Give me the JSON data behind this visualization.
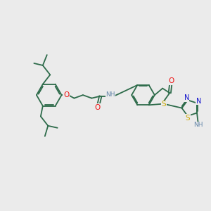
{
  "background_color": "#ebebeb",
  "bond_color": "#2d6b4a",
  "bond_width": 1.3,
  "figsize": [
    3.0,
    3.0
  ],
  "dpi": 100,
  "atoms": {
    "O_red": "#ee1111",
    "N_blue": "#1111cc",
    "S_yellow": "#ccaa00",
    "H_gray": "#6688aa"
  },
  "xlim": [
    0,
    10
  ],
  "ylim": [
    0,
    10
  ]
}
